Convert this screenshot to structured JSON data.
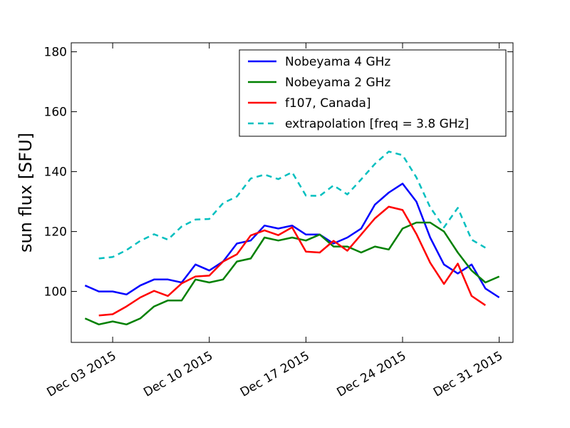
{
  "chart_data": {
    "type": "line",
    "ylabel": "sun flux [SFU]",
    "xlabel": "",
    "ylim": [
      83,
      183
    ],
    "yticks": [
      100,
      120,
      140,
      160,
      180
    ],
    "x_dates": [
      "2015-12-01",
      "2015-12-02",
      "2015-12-03",
      "2015-12-04",
      "2015-12-05",
      "2015-12-06",
      "2015-12-07",
      "2015-12-08",
      "2015-12-09",
      "2015-12-10",
      "2015-12-11",
      "2015-12-12",
      "2015-12-13",
      "2015-12-14",
      "2015-12-15",
      "2015-12-16",
      "2015-12-17",
      "2015-12-18",
      "2015-12-19",
      "2015-12-20",
      "2015-12-21",
      "2015-12-22",
      "2015-12-23",
      "2015-12-24",
      "2015-12-25",
      "2015-12-26",
      "2015-12-27",
      "2015-12-28",
      "2015-12-29",
      "2015-12-30",
      "2015-12-31"
    ],
    "xlim": [
      "2015-11-30",
      "2016-01-01"
    ],
    "xticks": [
      {
        "date": "2015-12-03",
        "label": "Dec 03 2015"
      },
      {
        "date": "2015-12-10",
        "label": "Dec 10 2015"
      },
      {
        "date": "2015-12-17",
        "label": "Dec 17 2015"
      },
      {
        "date": "2015-12-24",
        "label": "Dec 24 2015"
      },
      {
        "date": "2015-12-31",
        "label": "Dec 31 2015"
      }
    ],
    "series": [
      {
        "name": "Nobeyama 4 GHz",
        "color": "#0000ff",
        "dashed": false,
        "start": "2015-12-01",
        "values": [
          102,
          100,
          100,
          99,
          102,
          104,
          104,
          103,
          109,
          107,
          110,
          116,
          117,
          122,
          121,
          122,
          119,
          119,
          116,
          118,
          121,
          129,
          133,
          136,
          130,
          118,
          109,
          106,
          109,
          101,
          98
        ]
      },
      {
        "name": "Nobeyama 2 GHz",
        "color": "#008000",
        "dashed": false,
        "start": "2015-12-01",
        "values": [
          91,
          89,
          90,
          89,
          91,
          95,
          97,
          97,
          104,
          103,
          104,
          110,
          111,
          118,
          117,
          118,
          117,
          119,
          115,
          115,
          113,
          115,
          114,
          121,
          123,
          123,
          120,
          113,
          107,
          103,
          105
        ]
      },
      {
        "name": "f107, Canada]",
        "color": "#ff0000",
        "dashed": false,
        "start": "2015-12-02",
        "values": [
          92,
          92.4,
          95,
          98,
          100.2,
          98.5,
          102.7,
          105,
          105.3,
          110,
          112.4,
          118.7,
          120.4,
          118.8,
          121.4,
          113.3,
          113,
          116.9,
          113.6,
          119,
          124.4,
          128.3,
          127.2,
          119.2,
          109.6,
          102.5,
          109.3,
          98.5,
          95.4
        ]
      },
      {
        "name": "extrapolation [freq = 3.8 GHz]",
        "color": "#00bfbf",
        "dashed": true,
        "start": "2015-12-02",
        "values": [
          111,
          111.5,
          113.8,
          116.9,
          119.1,
          117.3,
          121.7,
          124,
          124.2,
          129.5,
          131.7,
          137.7,
          139,
          137.5,
          139.8,
          132,
          131.9,
          135.4,
          132.4,
          137.4,
          142.6,
          146.7,
          145.5,
          138.1,
          128.1,
          121.4,
          127.9,
          117.3,
          114.6
        ]
      }
    ],
    "legend_position": "top-right",
    "grid": false
  }
}
